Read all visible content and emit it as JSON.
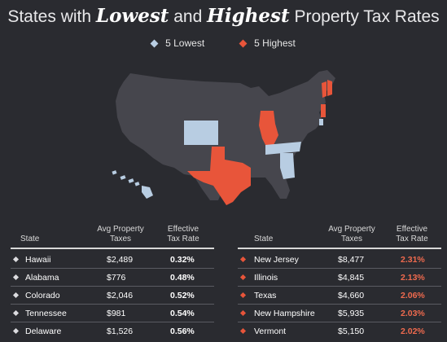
{
  "title": {
    "part1": "States with ",
    "lowest": "Lowest",
    "part2": " and ",
    "highest": "Highest",
    "part3": " Property Tax Rates"
  },
  "legend": {
    "lowest_label": "5 Lowest",
    "highest_label": "5 Highest"
  },
  "colors": {
    "background": "#2a2b30",
    "map_base": "#46464d",
    "lowest": "#b8cde2",
    "highest": "#e8553a"
  },
  "table_headers": {
    "state": "State",
    "avg_line1": "Avg Property",
    "avg_line2": "Taxes",
    "rate_line1": "Effective",
    "rate_line2": "Tax Rate"
  },
  "lowest_states": [
    {
      "state": "Hawaii",
      "avg": "$2,489",
      "rate": "0.32%"
    },
    {
      "state": "Alabama",
      "avg": "$776",
      "rate": "0.48%"
    },
    {
      "state": "Colorado",
      "avg": "$2,046",
      "rate": "0.52%"
    },
    {
      "state": "Tennessee",
      "avg": "$981",
      "rate": "0.54%"
    },
    {
      "state": "Delaware",
      "avg": "$1,526",
      "rate": "0.56%"
    }
  ],
  "highest_states": [
    {
      "state": "New Jersey",
      "avg": "$8,477",
      "rate": "2.31%"
    },
    {
      "state": "Illinois",
      "avg": "$4,845",
      "rate": "2.13%"
    },
    {
      "state": "Texas",
      "avg": "$4,660",
      "rate": "2.06%"
    },
    {
      "state": "New Hampshire",
      "avg": "$5,935",
      "rate": "2.03%"
    },
    {
      "state": "Vermont",
      "avg": "$5,150",
      "rate": "2.02%"
    }
  ]
}
